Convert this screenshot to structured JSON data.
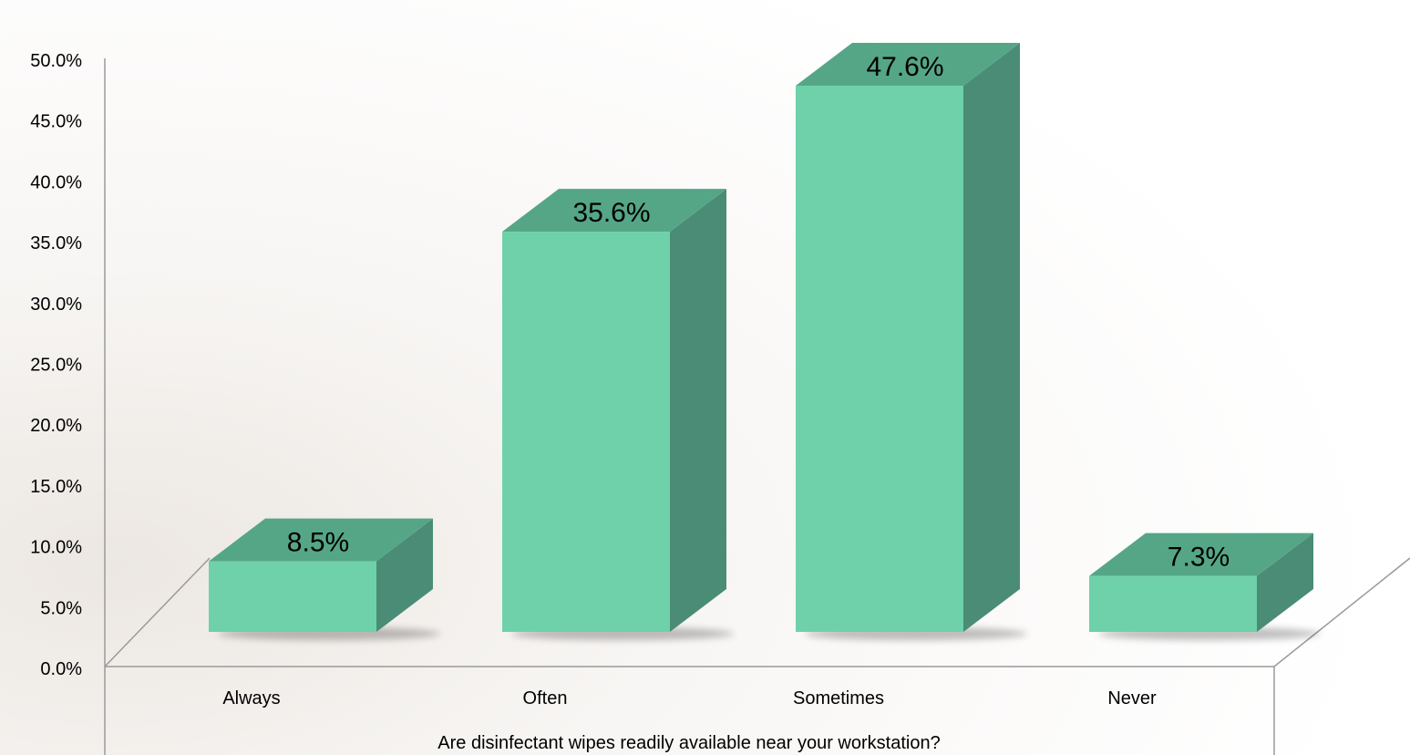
{
  "chart_data": {
    "type": "bar",
    "title": "",
    "xlabel": "Are disinfectant wipes readily available near your workstation?",
    "ylabel": "",
    "categories": [
      "Always",
      "Often",
      "Sometimes",
      "Never"
    ],
    "values": [
      8.5,
      35.6,
      47.6,
      7.3
    ],
    "value_labels": [
      "8.5%",
      "35.6%",
      "47.6%",
      "7.3%"
    ],
    "ylim": [
      0,
      50
    ],
    "yticks": [
      "0.0%",
      "5.0%",
      "10.0%",
      "15.0%",
      "20.0%",
      "25.0%",
      "30.0%",
      "35.0%",
      "40.0%",
      "45.0%",
      "50.0%"
    ],
    "legend": "none",
    "grid": false,
    "style": "3d",
    "colors": {
      "bar_front": "#6fd1aa",
      "bar_top": "#55a687",
      "bar_side": "#4a8c75",
      "axis": "#9a9a9a"
    }
  }
}
